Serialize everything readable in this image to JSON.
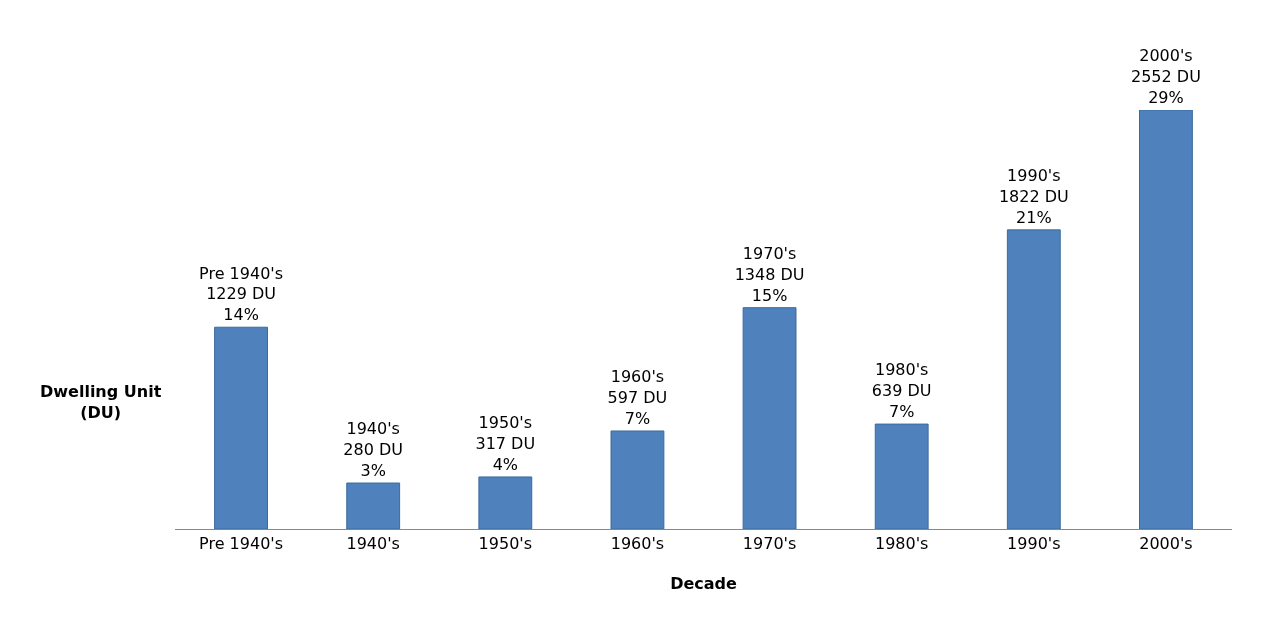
{
  "chart_data": {
    "type": "bar",
    "xlabel": "Decade",
    "ylabel": "Dwelling Unit\n(DU)",
    "categories": [
      "Pre 1940's",
      "1940's",
      "1950's",
      "1960's",
      "1970's",
      "1980's",
      "1990's",
      "2000's"
    ],
    "values": [
      1229,
      280,
      317,
      597,
      1348,
      639,
      1822,
      2552
    ],
    "value_labels": [
      "Pre 1940's\n1229 DU\n14%",
      "1940's\n280 DU\n3%",
      "1950's\n317 DU\n4%",
      "1960's\n597 DU\n7%",
      "1970's\n1348 DU\n15%",
      "1980's\n639 DU\n7%",
      "1990's\n1822 DU\n21%",
      "2000's\n2552 DU\n29%"
    ],
    "color": "#4f81bd"
  }
}
